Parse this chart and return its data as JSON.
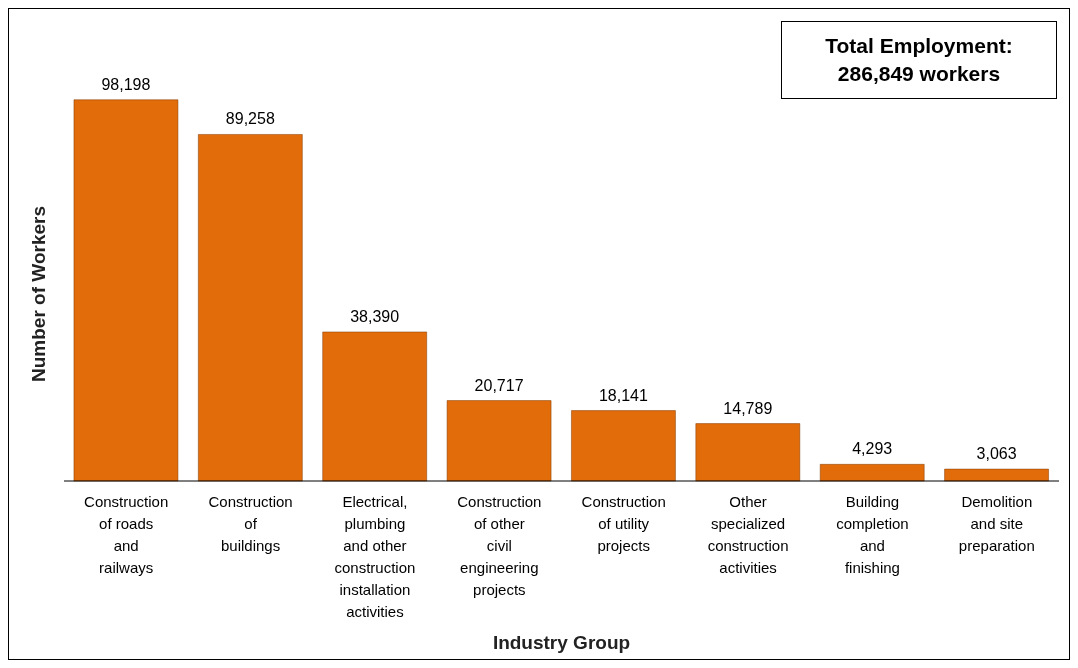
{
  "chart_data": {
    "type": "bar",
    "xlabel": "Industry Group",
    "ylabel": "Number of Workers",
    "categories": [
      "Construction of roads and railways",
      "Construction of buildings",
      "Electrical, plumbing and other construction installation activities",
      "Construction of other civil engineering projects",
      "Construction of utility projects",
      "Other specialized construction activities",
      "Building completion and finishing",
      "Demolition and site preparation"
    ],
    "values": [
      98198,
      89258,
      38390,
      20717,
      18141,
      14789,
      4293,
      3063
    ],
    "color": "#e36c0a",
    "value_labels": [
      "98,198",
      "89,258",
      "38,390",
      "20,717",
      "18,141",
      "14,789",
      "4,293",
      "3,063"
    ],
    "annotations": [
      "Total Employment: 286,849 workers"
    ]
  }
}
